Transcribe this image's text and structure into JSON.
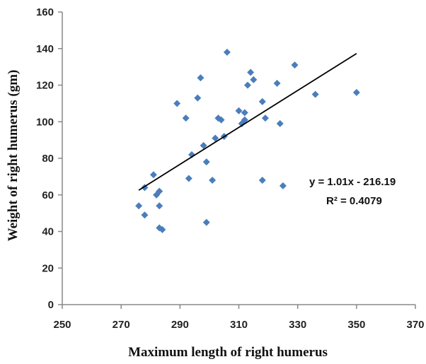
{
  "chart_data": {
    "type": "scatter",
    "xlabel": "Maximum length of right humerus",
    "ylabel": "Weight of right humerus (gm)",
    "xlim": [
      250,
      370
    ],
    "ylim": [
      0,
      160
    ],
    "xticks": [
      "250",
      "270",
      "290",
      "310",
      "330",
      "350",
      "370"
    ],
    "yticks": [
      "0",
      "20",
      "40",
      "60",
      "80",
      "100",
      "120",
      "140",
      "160"
    ],
    "marker_color": "#4a7ebb",
    "trendline_color": "#000000",
    "grid": false,
    "legend": "none",
    "trendline": {
      "x_range": [
        276,
        350
      ],
      "slope": 1.01,
      "intercept": -216.19,
      "equation": "y = 1.01x - 216.19",
      "r2": "R² = 0.4079"
    },
    "points": [
      {
        "x": 276,
        "y": 54
      },
      {
        "x": 278,
        "y": 49
      },
      {
        "x": 278,
        "y": 64
      },
      {
        "x": 281,
        "y": 71
      },
      {
        "x": 282,
        "y": 60
      },
      {
        "x": 283,
        "y": 62
      },
      {
        "x": 283,
        "y": 54
      },
      {
        "x": 283,
        "y": 42
      },
      {
        "x": 284,
        "y": 41
      },
      {
        "x": 289,
        "y": 110
      },
      {
        "x": 292,
        "y": 102
      },
      {
        "x": 293,
        "y": 69
      },
      {
        "x": 294,
        "y": 82
      },
      {
        "x": 296,
        "y": 113
      },
      {
        "x": 297,
        "y": 124
      },
      {
        "x": 298,
        "y": 87
      },
      {
        "x": 299,
        "y": 78
      },
      {
        "x": 299,
        "y": 45
      },
      {
        "x": 301,
        "y": 68
      },
      {
        "x": 302,
        "y": 91
      },
      {
        "x": 303,
        "y": 102
      },
      {
        "x": 304,
        "y": 101
      },
      {
        "x": 305,
        "y": 92
      },
      {
        "x": 306,
        "y": 138
      },
      {
        "x": 310,
        "y": 106
      },
      {
        "x": 311,
        "y": 99
      },
      {
        "x": 312,
        "y": 101
      },
      {
        "x": 312,
        "y": 105
      },
      {
        "x": 313,
        "y": 120
      },
      {
        "x": 314,
        "y": 127
      },
      {
        "x": 315,
        "y": 123
      },
      {
        "x": 318,
        "y": 111
      },
      {
        "x": 318,
        "y": 68
      },
      {
        "x": 319,
        "y": 102
      },
      {
        "x": 323,
        "y": 121
      },
      {
        "x": 324,
        "y": 99
      },
      {
        "x": 325,
        "y": 65
      },
      {
        "x": 329,
        "y": 131
      },
      {
        "x": 336,
        "y": 115
      },
      {
        "x": 350,
        "y": 116
      }
    ]
  }
}
